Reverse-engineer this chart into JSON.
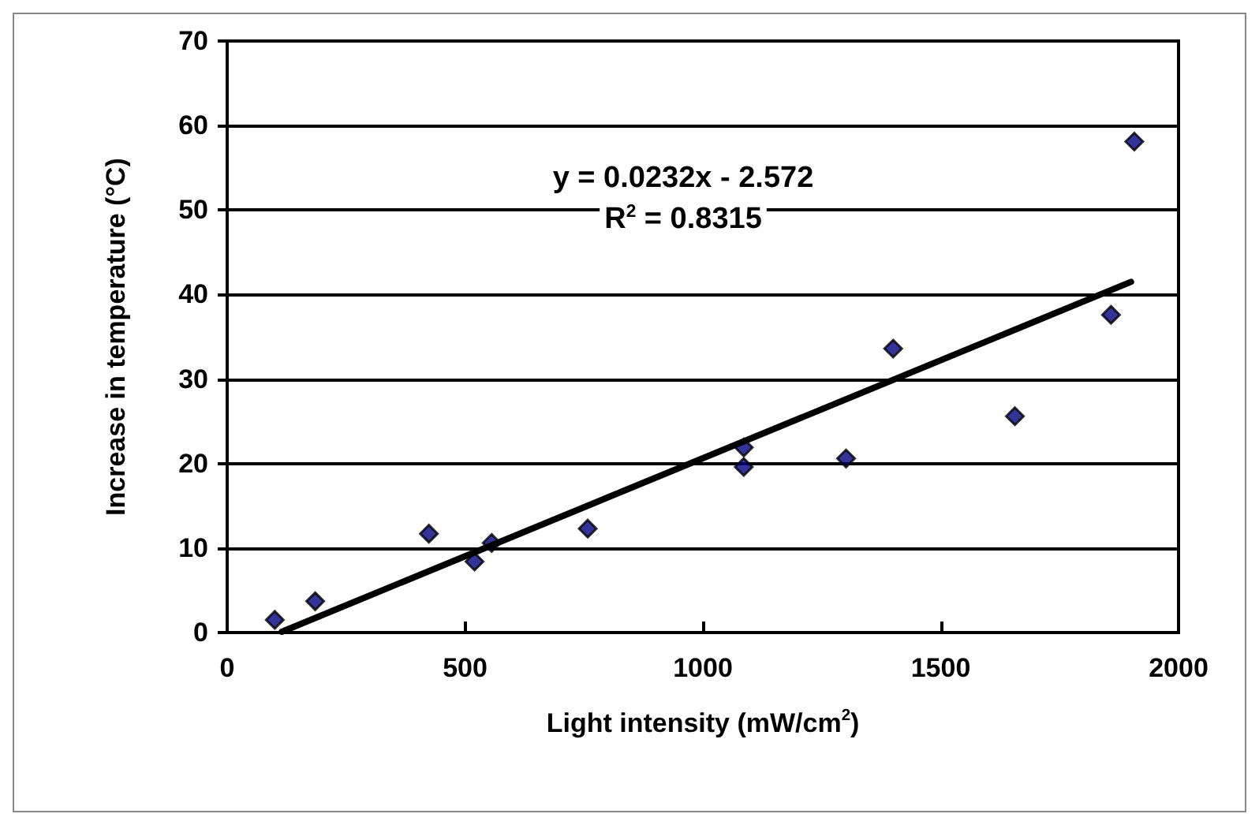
{
  "chart_data": {
    "type": "scatter",
    "xlabel": "Light intensity (mW/cm$^{2}$)",
    "ylabel": "Increase in temperature (°C)",
    "xlim": [
      0,
      2000
    ],
    "xticks": [
      0,
      500,
      1000,
      1500,
      2000
    ],
    "ylim": [
      0,
      70
    ],
    "yticks": [
      0,
      10,
      20,
      30,
      40,
      50,
      60,
      70
    ],
    "grid": "y",
    "marker": "diamond",
    "series": [
      {
        "color": "#000080",
        "x": [
          100,
          185,
          424,
          520,
          556,
          758,
          1086,
          1086,
          1301,
          1400,
          1656,
          1858,
          1907
        ],
        "values": [
          1.5,
          3.7,
          11.7,
          8.4,
          10.6,
          12.3,
          21.9,
          19.6,
          20.6,
          33.6,
          25.6,
          37.6,
          58.1
        ]
      },
      {
        "type": "line",
        "color": "#000000",
        "marker": "none",
        "x": [
          115,
          1900
        ],
        "values": [
          0.1,
          41.5
        ]
      }
    ],
    "annotations": [
      "y = 0.0232x - 2.572",
      "R$^{2}$ = 0.8315"
    ]
  }
}
